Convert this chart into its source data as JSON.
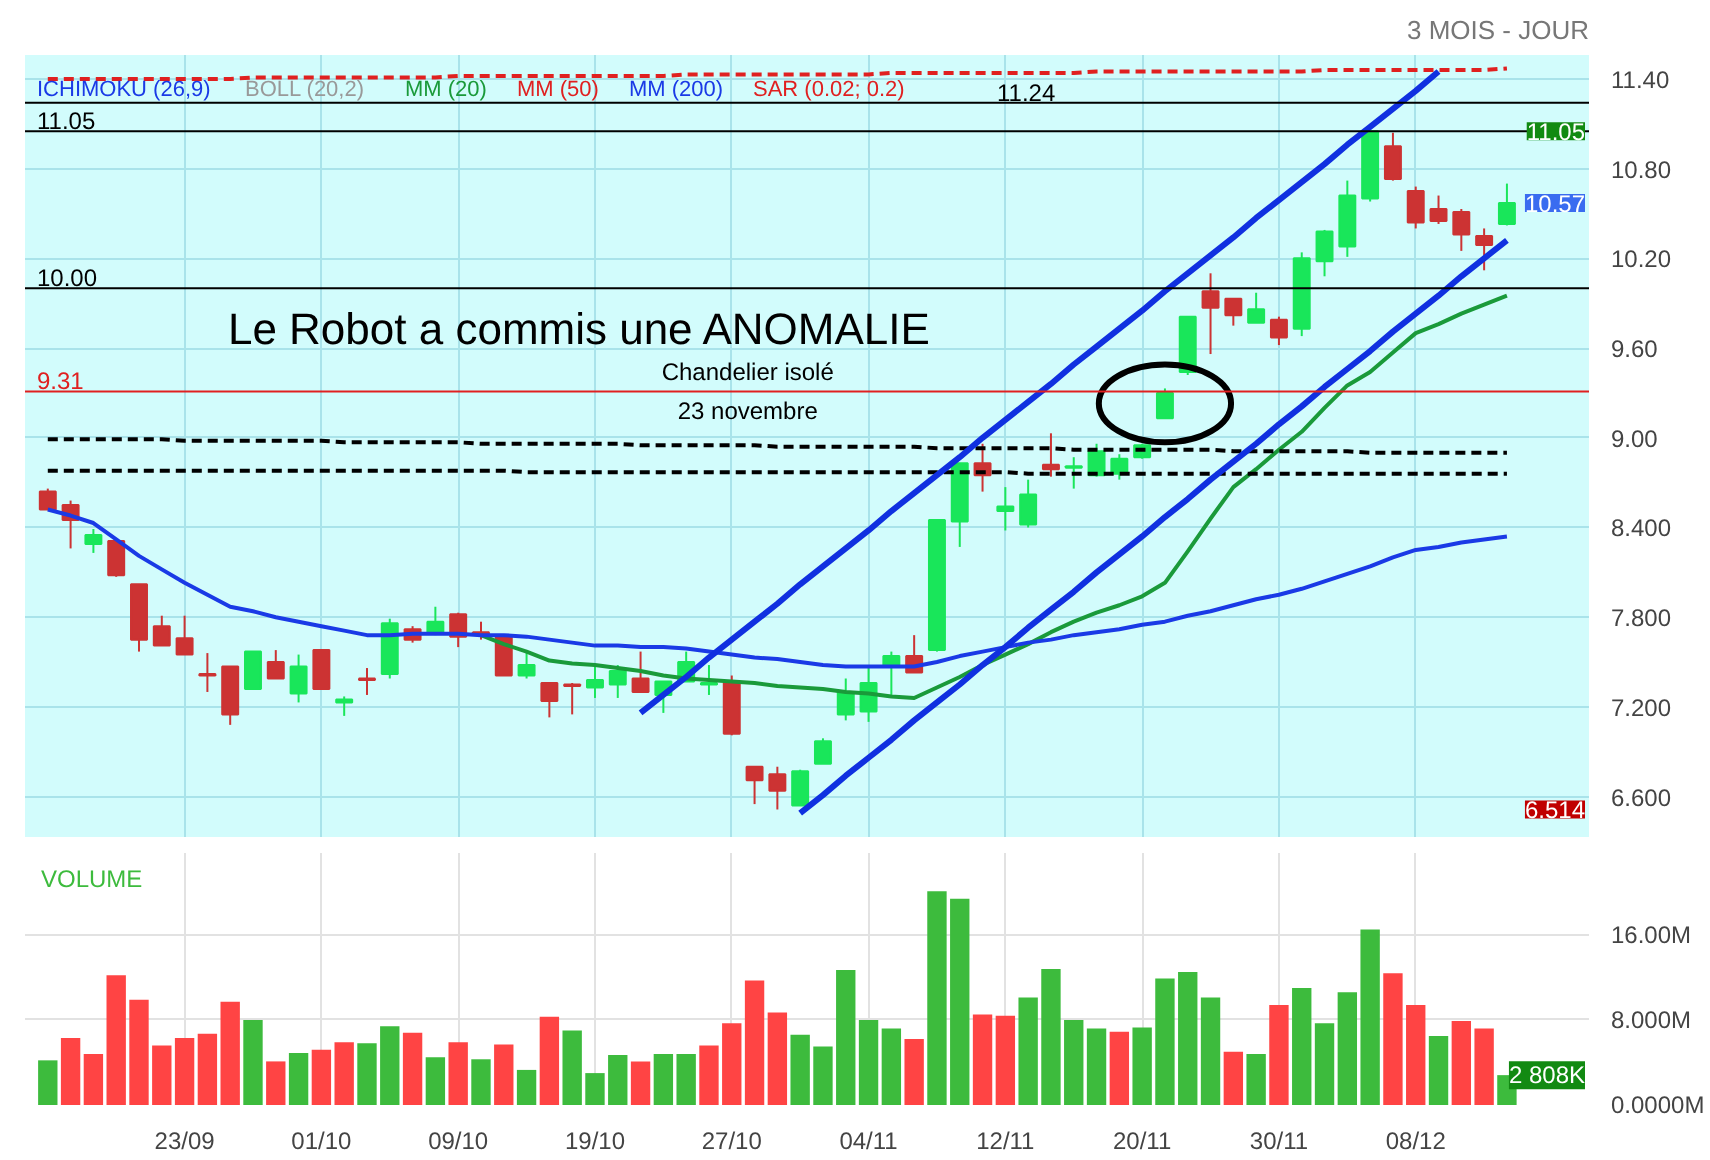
{
  "chart_data": [
    {
      "type": "candlestick",
      "subtitle": "3 MOIS - JOUR",
      "categories": [
        null,
        null,
        null,
        null,
        null,
        null,
        null,
        null,
        null,
        null,
        null,
        null,
        null,
        null,
        null,
        null,
        null,
        null,
        null,
        null,
        null,
        null,
        null,
        null,
        null,
        null,
        null,
        null,
        null,
        null,
        null,
        null,
        null,
        null,
        null,
        null,
        null,
        null,
        null,
        null,
        null,
        null,
        null,
        null,
        null,
        null,
        null,
        null,
        null,
        null,
        null,
        null,
        null,
        null,
        null,
        null,
        null,
        null,
        null,
        null,
        null,
        null,
        null,
        null,
        null
      ],
      "ohlc": [
        [
          8.64,
          8.66,
          8.52,
          8.52
        ],
        [
          8.55,
          8.58,
          8.26,
          8.45
        ],
        [
          8.29,
          8.39,
          8.23,
          8.35
        ],
        [
          8.31,
          8.32,
          8.07,
          8.08
        ],
        [
          8.02,
          8.02,
          7.57,
          7.65
        ],
        [
          7.74,
          7.81,
          7.61,
          7.61
        ],
        [
          7.66,
          7.81,
          7.55,
          7.55
        ],
        [
          7.42,
          7.56,
          7.3,
          7.41
        ],
        [
          7.47,
          7.47,
          7.08,
          7.15
        ],
        [
          7.32,
          7.57,
          7.32,
          7.57
        ],
        [
          7.5,
          7.58,
          7.39,
          7.39
        ],
        [
          7.29,
          7.55,
          7.23,
          7.47
        ],
        [
          7.58,
          7.58,
          7.32,
          7.32
        ],
        [
          7.23,
          7.27,
          7.14,
          7.25
        ],
        [
          7.39,
          7.46,
          7.28,
          7.38
        ],
        [
          7.42,
          7.79,
          7.39,
          7.76
        ],
        [
          7.72,
          7.74,
          7.63,
          7.65
        ],
        [
          7.7,
          7.87,
          7.68,
          7.77
        ],
        [
          7.82,
          7.83,
          7.6,
          7.67
        ],
        [
          7.7,
          7.77,
          7.65,
          7.69
        ],
        [
          7.68,
          7.68,
          7.41,
          7.41
        ],
        [
          7.41,
          7.57,
          7.39,
          7.48
        ],
        [
          7.36,
          7.36,
          7.13,
          7.24
        ],
        [
          7.35,
          7.36,
          7.15,
          7.34
        ],
        [
          7.33,
          7.48,
          7.26,
          7.38
        ],
        [
          7.35,
          7.48,
          7.26,
          7.44
        ],
        [
          7.39,
          7.57,
          7.3,
          7.3
        ],
        [
          7.28,
          7.37,
          7.16,
          7.37
        ],
        [
          7.37,
          7.57,
          7.37,
          7.5
        ],
        [
          7.35,
          7.48,
          7.28,
          7.36
        ],
        [
          7.36,
          7.41,
          7.01,
          7.02
        ],
        [
          6.8,
          6.8,
          6.55,
          6.71
        ],
        [
          6.75,
          6.8,
          6.514,
          6.64
        ],
        [
          6.54,
          6.78,
          6.54,
          6.77
        ],
        [
          6.82,
          6.99,
          6.82,
          6.97
        ],
        [
          7.15,
          7.39,
          7.11,
          7.3
        ],
        [
          7.17,
          7.46,
          7.1,
          7.36
        ],
        [
          7.47,
          7.57,
          7.28,
          7.54
        ],
        [
          7.54,
          7.68,
          7.43,
          7.43
        ],
        [
          7.58,
          8.45,
          7.57,
          8.45
        ],
        [
          8.44,
          8.83,
          8.27,
          8.83
        ],
        [
          8.83,
          8.96,
          8.64,
          8.75
        ],
        [
          8.51,
          8.67,
          8.38,
          8.54
        ],
        [
          8.42,
          8.72,
          8.4,
          8.62
        ],
        [
          8.82,
          9.03,
          8.74,
          8.79
        ],
        [
          8.8,
          8.87,
          8.66,
          8.81
        ],
        [
          8.75,
          8.96,
          8.74,
          8.91
        ],
        [
          8.76,
          8.89,
          8.72,
          8.86
        ],
        [
          8.87,
          8.96,
          8.86,
          8.95
        ],
        [
          9.13,
          9.33,
          9.13,
          9.3
        ],
        [
          9.44,
          9.81,
          9.42,
          9.81
        ],
        [
          9.98,
          10.1,
          9.56,
          9.87
        ],
        [
          9.93,
          9.93,
          9.75,
          9.82
        ],
        [
          9.77,
          9.97,
          9.77,
          9.86
        ],
        [
          9.79,
          9.81,
          9.62,
          9.67
        ],
        [
          9.73,
          10.24,
          9.68,
          10.2
        ],
        [
          10.18,
          10.39,
          10.08,
          10.38
        ],
        [
          10.28,
          10.72,
          10.21,
          10.62
        ],
        [
          10.6,
          11.05,
          10.58,
          11.05
        ],
        [
          10.95,
          11.04,
          10.72,
          10.73
        ],
        [
          10.65,
          10.68,
          10.4,
          10.44
        ],
        [
          10.53,
          10.62,
          10.43,
          10.45
        ],
        [
          10.51,
          10.53,
          10.25,
          10.36
        ],
        [
          10.35,
          10.4,
          10.12,
          10.29
        ],
        [
          10.43,
          10.7,
          10.42,
          10.57
        ]
      ],
      "colors": [
        "#cc3333",
        "#cc3333",
        "#19e65a",
        "#cc3333",
        "#cc3333",
        "#cc3333",
        "#cc3333",
        "#cc3333",
        "#cc3333",
        "#19e65a",
        "#cc3333",
        "#19e65a",
        "#cc3333",
        "#19e65a",
        "#cc3333",
        "#19e65a",
        "#cc3333",
        "#19e65a",
        "#cc3333",
        "#cc3333",
        "#cc3333",
        "#19e65a",
        "#cc3333",
        "#cc3333",
        "#19e65a",
        "#19e65a",
        "#cc3333",
        "#19e65a",
        "#19e65a",
        "#19e65a",
        "#cc3333",
        "#cc3333",
        "#cc3333",
        "#19e65a",
        "#19e65a",
        "#19e65a",
        "#19e65a",
        "#19e65a",
        "#cc3333",
        "#19e65a",
        "#19e65a",
        "#cc3333",
        "#19e65a",
        "#19e65a",
        "#cc3333",
        "#19e65a",
        "#19e65a",
        "#19e65a",
        "#19e65a",
        "#19e65a",
        "#19e65a",
        "#cc3333",
        "#cc3333",
        "#19e65a",
        "#cc3333",
        "#19e65a",
        "#19e65a",
        "#19e65a",
        "#19e65a",
        "#cc3333",
        "#cc3333",
        "#cc3333",
        "#cc3333",
        "#cc3333",
        "#19e65a"
      ],
      "series": [
        {
          "type": "line",
          "name": "MM (20)",
          "color": "#1a9a3a",
          "values": [
            null,
            null,
            null,
            null,
            null,
            null,
            null,
            null,
            null,
            null,
            null,
            null,
            null,
            null,
            null,
            null,
            null,
            null,
            null,
            7.68,
            7.62,
            7.57,
            7.51,
            7.49,
            7.48,
            7.46,
            7.44,
            7.41,
            7.39,
            7.38,
            7.37,
            7.36,
            7.34,
            7.33,
            7.32,
            7.3,
            7.29,
            7.27,
            7.26,
            7.33,
            7.4,
            7.48,
            7.55,
            7.62,
            7.7,
            7.77,
            7.83,
            7.88,
            7.94,
            8.03,
            8.24,
            8.46,
            8.67,
            8.79,
            8.92,
            9.04,
            9.2,
            9.35,
            9.44,
            9.57,
            9.7,
            9.76,
            9.83,
            9.89,
            9.95
          ]
        },
        {
          "type": "line",
          "name": "MM (200)",
          "color": "#1a3ae6",
          "values": [
            8.52,
            8.48,
            8.43,
            8.32,
            8.21,
            8.12,
            8.03,
            7.95,
            7.87,
            7.84,
            7.8,
            7.77,
            7.74,
            7.71,
            7.68,
            7.68,
            7.69,
            7.69,
            7.69,
            7.68,
            7.68,
            7.67,
            7.65,
            7.63,
            7.61,
            7.61,
            7.6,
            7.6,
            7.59,
            7.57,
            7.55,
            7.53,
            7.52,
            7.5,
            7.48,
            7.47,
            7.47,
            7.47,
            7.47,
            7.5,
            7.54,
            7.57,
            7.6,
            7.63,
            7.65,
            7.68,
            7.7,
            7.72,
            7.75,
            7.77,
            7.81,
            7.84,
            7.88,
            7.92,
            7.95,
            7.99,
            8.04,
            8.09,
            8.14,
            8.2,
            8.25,
            8.27,
            8.3,
            8.32,
            8.34
          ]
        },
        {
          "type": "line",
          "name": "SAR (0.02; 0.2)",
          "color": "#e02020",
          "line_style": "dashed",
          "values": [
            11.4,
            11.4,
            11.4,
            11.4,
            11.4,
            11.4,
            11.4,
            11.4,
            11.4,
            11.41,
            11.41,
            11.41,
            11.41,
            11.41,
            11.41,
            11.41,
            11.41,
            11.41,
            11.42,
            11.42,
            11.42,
            11.42,
            11.42,
            11.42,
            11.42,
            11.42,
            11.42,
            11.42,
            11.43,
            11.43,
            11.43,
            11.43,
            11.43,
            11.43,
            11.43,
            11.43,
            11.43,
            11.44,
            11.44,
            11.44,
            11.44,
            11.44,
            11.44,
            11.44,
            11.44,
            11.44,
            11.45,
            11.45,
            11.45,
            11.45,
            11.45,
            11.45,
            11.45,
            11.45,
            11.45,
            11.45,
            11.46,
            11.46,
            11.46,
            11.46,
            11.46,
            11.46,
            11.46,
            11.46,
            11.47
          ]
        },
        {
          "type": "line",
          "color": "#000000",
          "line_style": "dashed",
          "values": [
            8.99,
            8.99,
            8.99,
            8.99,
            8.99,
            8.99,
            8.98,
            8.98,
            8.98,
            8.98,
            8.98,
            8.98,
            8.98,
            8.97,
            8.97,
            8.97,
            8.97,
            8.97,
            8.97,
            8.96,
            8.96,
            8.96,
            8.96,
            8.96,
            8.96,
            8.96,
            8.95,
            8.95,
            8.95,
            8.95,
            8.95,
            8.95,
            8.94,
            8.94,
            8.94,
            8.94,
            8.94,
            8.94,
            8.94,
            8.93,
            8.93,
            8.93,
            8.93,
            8.93,
            8.93,
            8.92,
            8.92,
            8.92,
            8.92,
            8.92,
            8.92,
            8.92,
            8.91,
            8.91,
            8.91,
            8.91,
            8.91,
            8.91,
            8.9,
            8.9,
            8.9,
            8.9,
            8.9,
            8.9,
            8.9
          ]
        },
        {
          "type": "line",
          "color": "#000000",
          "line_style": "dashed",
          "values": [
            8.78,
            8.78,
            8.78,
            8.78,
            8.78,
            8.78,
            8.78,
            8.78,
            8.78,
            8.78,
            8.78,
            8.78,
            8.78,
            8.78,
            8.78,
            8.78,
            8.78,
            8.78,
            8.78,
            8.78,
            8.78,
            8.77,
            8.77,
            8.77,
            8.77,
            8.77,
            8.77,
            8.77,
            8.77,
            8.77,
            8.77,
            8.77,
            8.77,
            8.77,
            8.77,
            8.77,
            8.77,
            8.77,
            8.77,
            8.77,
            8.77,
            8.77,
            8.77,
            8.76,
            8.76,
            8.76,
            8.76,
            8.76,
            8.76,
            8.76,
            8.76,
            8.76,
            8.76,
            8.76,
            8.76,
            8.76,
            8.76,
            8.76,
            8.76,
            8.76,
            8.76,
            8.76,
            8.76,
            8.76,
            8.76
          ]
        },
        {
          "type": "line",
          "color": "#1030e0",
          "values": [
            null,
            null,
            null,
            null,
            null,
            null,
            null,
            null,
            null,
            null,
            null,
            null,
            null,
            null,
            null,
            null,
            null,
            null,
            null,
            null,
            null,
            null,
            null,
            null,
            null,
            null,
            7.16,
            7.28,
            7.4,
            7.53,
            7.65,
            7.77,
            7.89,
            8.02,
            8.14,
            8.26,
            8.38,
            8.51,
            8.63,
            8.75,
            8.87,
            9.0,
            9.12,
            9.24,
            9.36,
            9.49,
            9.61,
            9.73,
            9.85,
            9.98,
            10.1,
            10.22,
            10.34,
            10.47,
            10.59,
            10.71,
            10.83,
            10.96,
            11.08,
            11.2,
            11.32,
            11.45,
            null,
            null,
            null
          ]
        },
        {
          "type": "line",
          "color": "#1030e0",
          "values": [
            null,
            null,
            null,
            null,
            null,
            null,
            null,
            null,
            null,
            null,
            null,
            null,
            null,
            null,
            null,
            null,
            null,
            null,
            null,
            null,
            null,
            null,
            null,
            null,
            null,
            null,
            null,
            null,
            null,
            null,
            null,
            null,
            null,
            6.49,
            6.61,
            6.74,
            6.86,
            6.98,
            7.11,
            7.23,
            7.35,
            7.48,
            7.6,
            7.73,
            7.85,
            7.97,
            8.1,
            8.22,
            8.34,
            8.47,
            8.59,
            8.72,
            8.84,
            8.96,
            9.09,
            9.21,
            9.34,
            9.46,
            9.58,
            9.71,
            9.83,
            9.95,
            10.08,
            10.2,
            10.32
          ]
        }
      ],
      "ylim": [
        6.33,
        11.56
      ],
      "yticks": [
        {
          "value": 6.6,
          "label": "6.600"
        },
        {
          "value": 7.2,
          "label": "7.200"
        },
        {
          "value": 7.8,
          "label": "7.800"
        },
        {
          "value": 8.4,
          "label": "8.400"
        },
        {
          "value": 9.0,
          "label": "9.00"
        },
        {
          "value": 9.6,
          "label": "9.60"
        },
        {
          "value": 10.2,
          "label": "10.20"
        },
        {
          "value": 10.8,
          "label": "10.80"
        },
        {
          "value": 11.4,
          "label": "11.40"
        }
      ],
      "tick_labels": "y",
      "grid": true,
      "legend": "top left",
      "ref_lines": [
        {
          "axis": "y",
          "value": 11.24,
          "label": "11.24",
          "color": "#000000"
        },
        {
          "axis": "y",
          "value": 11.05,
          "label": "11.05",
          "color": "#000000"
        },
        {
          "axis": "y",
          "value": 10.0,
          "label": "10.00",
          "color": "#000000"
        },
        {
          "axis": "y",
          "value": 9.31,
          "label": "9.31",
          "color": "#e02020"
        }
      ],
      "annotations": [
        "ICHIMOKU (26,9)",
        "BOLL (20,2)",
        "MM (50)",
        "Le Robot a commis une ANOMALIE",
        "Chandelier isolé",
        "23 novembre",
        {
          "text": "11.05",
          "y": 11.05
        },
        "10.57",
        "6.514"
      ]
    },
    {
      "type": "bar",
      "title": "VOLUME",
      "categories": [
        null,
        null,
        null,
        null,
        null,
        null,
        "23/09",
        null,
        null,
        null,
        null,
        null,
        "01/10",
        null,
        null,
        null,
        null,
        null,
        "09/10",
        null,
        null,
        null,
        null,
        null,
        "19/10",
        null,
        null,
        null,
        null,
        null,
        "27/10",
        null,
        null,
        null,
        null,
        null,
        "04/11",
        null,
        null,
        null,
        null,
        null,
        "12/11",
        null,
        null,
        null,
        null,
        null,
        "20/11",
        null,
        null,
        null,
        null,
        null,
        "30/11",
        null,
        null,
        null,
        null,
        null,
        "08/12",
        null,
        null,
        null,
        null
      ],
      "values": [
        4.2,
        6.3,
        4.8,
        12.2,
        9.9,
        5.6,
        6.3,
        6.7,
        9.7,
        8.0,
        4.1,
        4.9,
        5.2,
        5.9,
        5.8,
        7.4,
        6.8,
        4.5,
        5.9,
        4.3,
        5.7,
        3.3,
        8.3,
        7.0,
        3.0,
        4.7,
        4.1,
        4.8,
        4.8,
        5.6,
        7.7,
        11.7,
        8.7,
        6.6,
        5.5,
        12.7,
        8.0,
        7.2,
        6.2,
        20.1,
        19.4,
        8.5,
        8.4,
        10.1,
        12.8,
        8.0,
        7.2,
        6.9,
        7.3,
        11.9,
        12.5,
        10.1,
        5.0,
        4.8,
        9.4,
        11.0,
        7.7,
        10.6,
        16.5,
        12.4,
        9.4,
        6.5,
        7.9,
        7.2,
        2.808
      ],
      "colors": [
        "#3dbb3d",
        "#ff4444",
        "#ff4444",
        "#ff4444",
        "#ff4444",
        "#ff4444",
        "#ff4444",
        "#ff4444",
        "#ff4444",
        "#3dbb3d",
        "#ff4444",
        "#3dbb3d",
        "#ff4444",
        "#ff4444",
        "#3dbb3d",
        "#3dbb3d",
        "#ff4444",
        "#3dbb3d",
        "#ff4444",
        "#3dbb3d",
        "#ff4444",
        "#3dbb3d",
        "#ff4444",
        "#3dbb3d",
        "#3dbb3d",
        "#3dbb3d",
        "#ff4444",
        "#3dbb3d",
        "#3dbb3d",
        "#ff4444",
        "#ff4444",
        "#ff4444",
        "#ff4444",
        "#3dbb3d",
        "#3dbb3d",
        "#3dbb3d",
        "#3dbb3d",
        "#3dbb3d",
        "#ff4444",
        "#3dbb3d",
        "#3dbb3d",
        "#ff4444",
        "#ff4444",
        "#3dbb3d",
        "#3dbb3d",
        "#3dbb3d",
        "#3dbb3d",
        "#ff4444",
        "#3dbb3d",
        "#3dbb3d",
        "#3dbb3d",
        "#3dbb3d",
        "#ff4444",
        "#3dbb3d",
        "#ff4444",
        "#3dbb3d",
        "#3dbb3d",
        "#3dbb3d",
        "#3dbb3d",
        "#ff4444",
        "#ff4444",
        "#3dbb3d",
        "#ff4444",
        "#ff4444",
        "#3dbb3d"
      ],
      "ylim": [
        0,
        23.7
      ],
      "yticks": [
        {
          "value": 0,
          "label": "0.0000M"
        },
        {
          "value": 8,
          "label": "8.000M"
        },
        {
          "value": 16,
          "label": "16.00M"
        }
      ],
      "grid": true,
      "annotations": [
        {
          "text": "2 808K",
          "y": 2.808
        }
      ]
    }
  ]
}
